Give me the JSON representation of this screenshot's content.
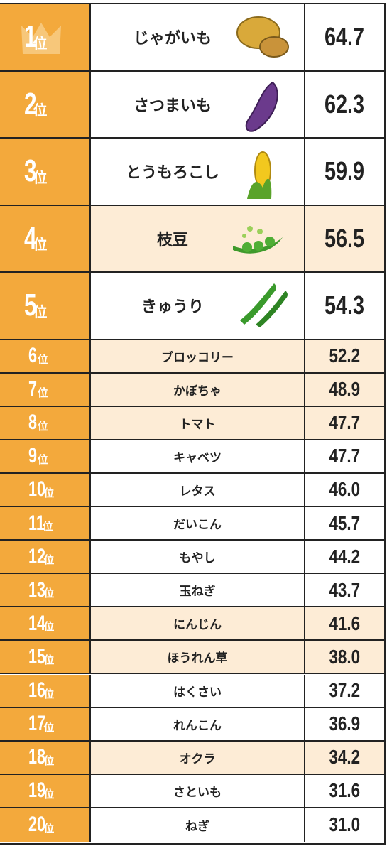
{
  "rank_unit": "位",
  "rows": [
    {
      "rank": 1,
      "name": "じゃがいも",
      "value": "64.7",
      "shaded": false
    },
    {
      "rank": 2,
      "name": "さつまいも",
      "value": "62.3",
      "shaded": false
    },
    {
      "rank": 3,
      "name": "とうもろこし",
      "value": "59.9",
      "shaded": false
    },
    {
      "rank": 4,
      "name": "枝豆",
      "value": "56.5",
      "shaded": true
    },
    {
      "rank": 5,
      "name": "きゅうり",
      "value": "54.3",
      "shaded": false
    },
    {
      "rank": 6,
      "name": "ブロッコリー",
      "value": "52.2",
      "shaded": true
    },
    {
      "rank": 7,
      "name": "かぼちゃ",
      "value": "48.9",
      "shaded": true
    },
    {
      "rank": 8,
      "name": "トマト",
      "value": "47.7",
      "shaded": true
    },
    {
      "rank": 9,
      "name": "キャベツ",
      "value": "47.7",
      "shaded": false
    },
    {
      "rank": 10,
      "name": "レタス",
      "value": "46.0",
      "shaded": false
    },
    {
      "rank": 11,
      "name": "だいこん",
      "value": "45.7",
      "shaded": false
    },
    {
      "rank": 12,
      "name": "もやし",
      "value": "44.2",
      "shaded": false
    },
    {
      "rank": 13,
      "name": "玉ねぎ",
      "value": "43.7",
      "shaded": false
    },
    {
      "rank": 14,
      "name": "にんじん",
      "value": "41.6",
      "shaded": true
    },
    {
      "rank": 15,
      "name": "ほうれん草",
      "value": "38.0",
      "shaded": true
    },
    {
      "rank": 16,
      "name": "はくさい",
      "value": "37.2",
      "shaded": false
    },
    {
      "rank": 17,
      "name": "れんこん",
      "value": "36.9",
      "shaded": false
    },
    {
      "rank": 18,
      "name": "オクラ",
      "value": "34.2",
      "shaded": true
    },
    {
      "rank": 19,
      "name": "さといも",
      "value": "31.6",
      "shaded": false
    },
    {
      "rank": 20,
      "name": "ねぎ",
      "value": "31.0",
      "shaded": false
    }
  ]
}
